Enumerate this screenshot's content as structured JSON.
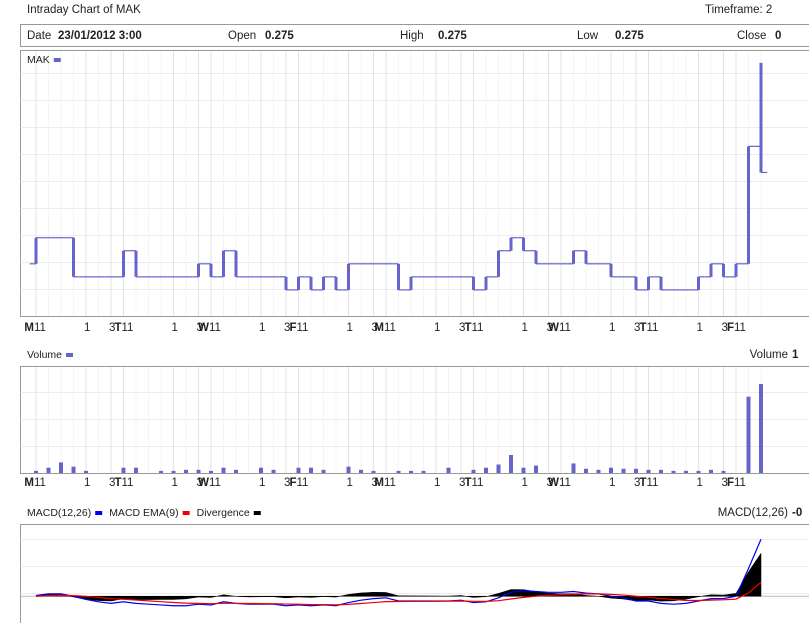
{
  "header": {
    "title": "Intraday Chart of MAK",
    "timeframe": "Timeframe: 2"
  },
  "info": {
    "fields": [
      {
        "label": "Date",
        "value": "23/01/2012 3:00"
      },
      {
        "label": "Open",
        "value": "0.275"
      },
      {
        "label": "High",
        "value": "0.275"
      },
      {
        "label": "Low",
        "value": "0.275"
      },
      {
        "label": "Close",
        "value": "0"
      }
    ]
  },
  "chart_data": [
    {
      "type": "ohlc",
      "categories": [
        "11",
        null,
        null,
        null,
        "1",
        null,
        "3",
        "11",
        null,
        null,
        null,
        "1",
        null,
        "3",
        "11",
        null,
        null,
        null,
        "1",
        null,
        "3",
        "11",
        null,
        null,
        null,
        "1",
        null,
        "3",
        "11",
        null,
        null,
        null,
        "1",
        null,
        "3",
        "11",
        null,
        null,
        null,
        "1",
        null,
        "3",
        "11",
        null,
        null,
        null,
        "1",
        null,
        "3",
        "11",
        null,
        null,
        null,
        "1",
        null,
        "3",
        "11",
        null,
        null
      ],
      "day_labels": [
        "M",
        null,
        null,
        null,
        null,
        null,
        null,
        "T",
        null,
        null,
        null,
        null,
        null,
        null,
        "W",
        null,
        null,
        null,
        null,
        null,
        null,
        "F",
        null,
        null,
        null,
        null,
        null,
        null,
        "M",
        null,
        null,
        null,
        null,
        null,
        null,
        "T",
        null,
        null,
        null,
        null,
        null,
        null,
        "W",
        null,
        null,
        null,
        null,
        null,
        null,
        "T",
        null,
        null,
        null,
        null,
        null,
        null,
        "F",
        null,
        null
      ],
      "ylim": [
        0.255,
        0.355
      ],
      "series": [
        {
          "name": "MAK",
          "color": "#6464cc",
          "open": [
            0.275,
            0.285,
            0.285,
            0.285,
            0.27,
            0.27,
            0.27,
            0.27,
            0.28,
            0.27,
            0.27,
            0.27,
            0.27,
            0.27,
            0.275,
            0.27,
            0.28,
            0.27,
            0.27,
            0.27,
            0.27,
            0.265,
            0.27,
            0.265,
            0.27,
            0.265,
            0.275,
            0.275,
            0.275,
            0.275,
            0.265,
            0.27,
            0.27,
            0.27,
            0.27,
            0.27,
            0.265,
            0.27,
            0.28,
            0.285,
            0.28,
            0.275,
            0.275,
            0.275,
            0.28,
            0.275,
            0.275,
            0.27,
            0.27,
            0.265,
            0.27,
            0.265,
            0.265,
            0.265,
            0.27,
            0.275,
            0.27,
            0.275,
            0.32
          ],
          "high": [
            0.285,
            0.285,
            0.285,
            0.285,
            0.27,
            0.27,
            0.27,
            0.28,
            0.28,
            0.27,
            0.27,
            0.27,
            0.27,
            0.275,
            0.275,
            0.28,
            0.28,
            0.27,
            0.27,
            0.27,
            0.27,
            0.27,
            0.27,
            0.27,
            0.27,
            0.275,
            0.275,
            0.275,
            0.275,
            0.275,
            0.27,
            0.27,
            0.27,
            0.27,
            0.27,
            0.27,
            0.27,
            0.28,
            0.285,
            0.285,
            0.28,
            0.275,
            0.275,
            0.28,
            0.28,
            0.275,
            0.275,
            0.27,
            0.27,
            0.27,
            0.27,
            0.265,
            0.265,
            0.27,
            0.275,
            0.275,
            0.275,
            0.32,
            0.352
          ],
          "low": [
            0.275,
            0.285,
            0.285,
            0.27,
            0.27,
            0.27,
            0.27,
            0.27,
            0.27,
            0.27,
            0.27,
            0.27,
            0.27,
            0.27,
            0.27,
            0.27,
            0.27,
            0.27,
            0.27,
            0.27,
            0.265,
            0.265,
            0.265,
            0.265,
            0.265,
            0.265,
            0.275,
            0.275,
            0.275,
            0.265,
            0.265,
            0.27,
            0.27,
            0.27,
            0.27,
            0.265,
            0.265,
            0.27,
            0.28,
            0.28,
            0.275,
            0.275,
            0.275,
            0.275,
            0.275,
            0.275,
            0.27,
            0.27,
            0.265,
            0.265,
            0.265,
            0.265,
            0.265,
            0.265,
            0.27,
            0.27,
            0.27,
            0.275,
            0.31
          ],
          "close": [
            0.285,
            0.285,
            0.285,
            0.27,
            0.27,
            0.27,
            0.27,
            0.28,
            0.27,
            0.27,
            0.27,
            0.27,
            0.27,
            0.275,
            0.27,
            0.28,
            0.27,
            0.27,
            0.27,
            0.27,
            0.265,
            0.27,
            0.265,
            0.27,
            0.265,
            0.275,
            0.275,
            0.275,
            0.275,
            0.265,
            0.27,
            0.27,
            0.27,
            0.27,
            0.27,
            0.265,
            0.27,
            0.28,
            0.285,
            0.28,
            0.275,
            0.275,
            0.275,
            0.28,
            0.275,
            0.275,
            0.27,
            0.27,
            0.265,
            0.27,
            0.265,
            0.265,
            0.265,
            0.27,
            0.275,
            0.27,
            0.275,
            0.32,
            0.31
          ]
        }
      ]
    },
    {
      "type": "bar",
      "categories": [
        "11",
        null,
        null,
        null,
        "1",
        null,
        "3",
        "11",
        null,
        null,
        null,
        "1",
        null,
        "3",
        "11",
        null,
        null,
        null,
        "1",
        null,
        "3",
        "11",
        null,
        null,
        null,
        "1",
        null,
        "3",
        "11",
        null,
        null,
        null,
        "1",
        null,
        "3",
        "11",
        null,
        null,
        null,
        "1",
        null,
        "3",
        "11",
        null,
        null,
        null,
        "1",
        null,
        "3",
        "11",
        null,
        null,
        null,
        "1",
        null,
        "3",
        "11",
        null,
        null
      ],
      "day_labels": [
        "M",
        null,
        null,
        null,
        null,
        null,
        null,
        "T",
        null,
        null,
        null,
        null,
        null,
        null,
        "W",
        null,
        null,
        null,
        null,
        null,
        null,
        "F",
        null,
        null,
        null,
        null,
        null,
        null,
        "M",
        null,
        null,
        null,
        null,
        null,
        null,
        "T",
        null,
        null,
        null,
        null,
        null,
        null,
        "W",
        null,
        null,
        null,
        null,
        null,
        null,
        "T",
        null,
        null,
        null,
        null,
        null,
        null,
        "F",
        null,
        null
      ],
      "right_label": "Volume",
      "right_value": "1",
      "ylim": [
        0,
        100
      ],
      "series": [
        {
          "name": "Volume",
          "color": "#6464cc",
          "values": [
            2,
            5,
            10,
            6,
            2,
            0,
            0,
            5,
            5,
            0,
            2,
            2,
            3,
            3,
            2,
            5,
            3,
            0,
            5,
            3,
            0,
            5,
            5,
            3,
            0,
            6,
            3,
            2,
            0,
            2,
            2,
            2,
            0,
            5,
            0,
            3,
            5,
            8,
            17,
            5,
            7,
            0,
            0,
            9,
            4,
            3,
            5,
            4,
            4,
            3,
            3,
            2,
            2,
            2,
            3,
            2,
            0,
            72,
            84
          ]
        }
      ]
    },
    {
      "type": "line",
      "right_label": "MACD(12,26)",
      "right_value": "-0",
      "ylim": [
        -0.003,
        0.009
      ],
      "series": [
        {
          "name": "MACD(12,26)",
          "color": "#0000ee",
          "values": [
            0.0001,
            0.0003,
            0.0003,
            0,
            -0.0004,
            -0.0007,
            -0.0009,
            -0.0007,
            -0.0009,
            -0.001,
            -0.0011,
            -0.0012,
            -0.0012,
            -0.001,
            -0.0011,
            -0.0007,
            -0.0009,
            -0.001,
            -0.001,
            -0.001,
            -0.0012,
            -0.0011,
            -0.0012,
            -0.0011,
            -0.0012,
            -0.0008,
            -0.0005,
            -0.0003,
            -0.0002,
            -0.0006,
            -0.0006,
            -0.0006,
            -0.0006,
            -0.0006,
            -0.0005,
            -0.0008,
            -0.0007,
            -0.0002,
            0.0005,
            0.0007,
            0.0006,
            0.0005,
            0.0005,
            0.0006,
            0.0004,
            0.0003,
            0,
            -0.0002,
            -0.0006,
            -0.0006,
            -0.0009,
            -0.001,
            -0.0009,
            -0.0006,
            -0.0003,
            -0.0003,
            0,
            0.0035,
            0.0072
          ]
        },
        {
          "name": "MACD EMA(9)",
          "color": "#ee0000",
          "values": [
            0,
            6e-05,
            0.00011,
            9e-05,
            -1e-05,
            -0.00015,
            -0.0003,
            -0.00038,
            -0.00048,
            -0.00058,
            -0.00069,
            -0.00079,
            -0.00087,
            -0.0009,
            -0.00094,
            -0.00089,
            -0.00089,
            -0.00091,
            -0.00093,
            -0.00094,
            -0.00099,
            -0.00101,
            -0.00105,
            -0.00106,
            -0.00109,
            -0.00103,
            -0.00092,
            -0.0008,
            -0.00068,
            -0.00066,
            -0.00065,
            -0.00064,
            -0.00063,
            -0.00062,
            -0.0006,
            -0.00064,
            -0.00065,
            -0.00056,
            -0.00035,
            -0.00014,
            1e-05,
            0.00011,
            0.00019,
            0.00027,
            0.0003,
            0.0003,
            0.00024,
            0.00015,
            0,
            -0.00012,
            -0.00028,
            -0.00042,
            -0.00052,
            -0.00054,
            -0.00049,
            -0.00045,
            -0.00036,
            0.00041,
            0.00177
          ]
        },
        {
          "name": "Divergence",
          "color": "#000000",
          "kind": "area",
          "values": [
            0.0001,
            0.00024,
            0.00019,
            -9e-05,
            -0.00039,
            -0.00055,
            -0.0006,
            -0.00032,
            -0.00042,
            -0.00042,
            -0.00041,
            -0.00041,
            -0.00033,
            -0.0001,
            -0.00016,
            0.00019,
            -1e-05,
            -9e-05,
            -7e-05,
            -6e-05,
            -0.00021,
            -9e-05,
            -0.00015,
            -4e-05,
            -0.00011,
            0.00023,
            0.00042,
            0.0005,
            0.00048,
            6e-05,
            5e-05,
            4e-05,
            3e-05,
            2e-05,
            0.0001,
            -0.00016,
            -5e-05,
            0.00036,
            0.00085,
            0.00084,
            0.00059,
            0.00039,
            0.00031,
            0.00033,
            0.0001,
            0,
            -0.00024,
            -0.00035,
            -0.0006,
            -0.00048,
            -0.00062,
            -0.00058,
            -0.00038,
            -6e-05,
            0.00019,
            0.00015,
            0.00036,
            0.00309,
            0.00543
          ]
        }
      ]
    }
  ]
}
